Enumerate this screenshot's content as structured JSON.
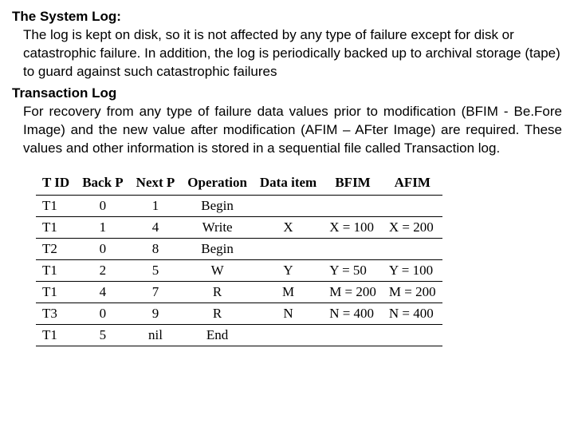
{
  "heading1": "The System Log:",
  "para1": "The log is kept on disk, so it is not affected by any type of failure except for disk or catastrophic failure. In addition, the log is periodically backed up to archival storage (tape) to guard against such catastrophic failures",
  "heading2": "Transaction Log",
  "para2": "For recovery from any type of failure data values prior to modification (BFIM - Be.Fore Image) and the new value after modification (AFIM – AFter Image) are required.  These values and other information is stored in a sequential file called Transaction log.",
  "table": {
    "columns": [
      "T ID",
      "Back P",
      "Next P",
      "Operation",
      "Data item",
      "BFIM",
      "AFIM"
    ],
    "rows": [
      [
        "T1",
        "0",
        "1",
        "Begin",
        "",
        "",
        ""
      ],
      [
        "T1",
        "1",
        "4",
        "Write",
        "X",
        "X = 100",
        "X = 200"
      ],
      [
        "T2",
        "0",
        "8",
        "Begin",
        "",
        "",
        ""
      ],
      [
        "T1",
        "2",
        "5",
        "W",
        "Y",
        "Y = 50",
        "Y = 100"
      ],
      [
        "T1",
        "4",
        "7",
        "R",
        "M",
        "M = 200",
        "M = 200"
      ],
      [
        "T3",
        "0",
        "9",
        "R",
        "N",
        "N = 400",
        "N = 400"
      ],
      [
        "T1",
        "5",
        "nil",
        "End",
        "",
        "",
        ""
      ]
    ],
    "col_align": [
      "left",
      "center",
      "center",
      "center",
      "center",
      "left",
      "left"
    ]
  }
}
